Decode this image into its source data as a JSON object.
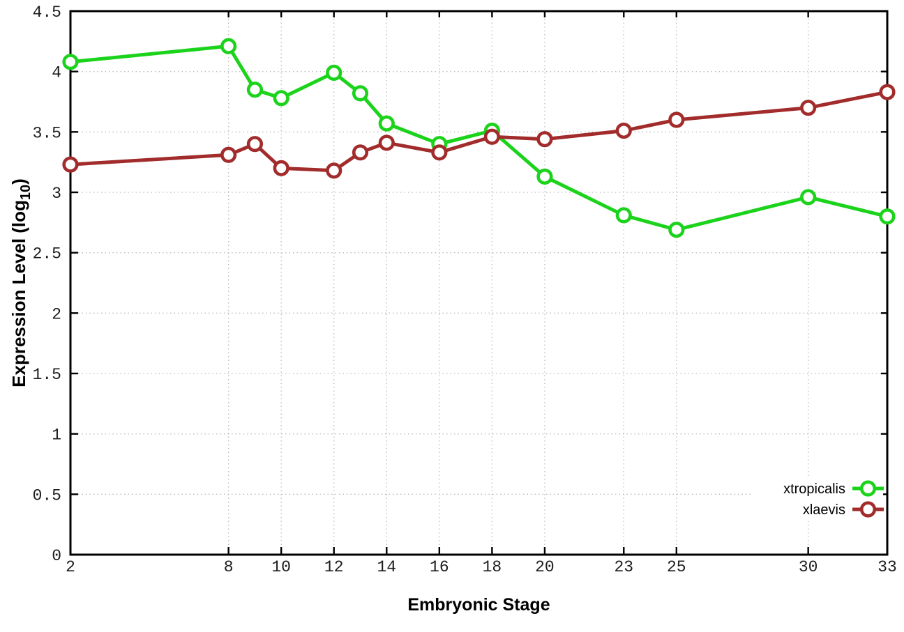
{
  "chart_data": {
    "type": "line",
    "title": "",
    "xlabel": "Embryonic Stage",
    "ylabel": "Expression Level (log10)",
    "ylabel_parts": {
      "pre": "Expression Level (log",
      "sub": "10",
      "post": ")"
    },
    "x": [
      2,
      8,
      9,
      10,
      12,
      13,
      14,
      16,
      18,
      20,
      23,
      25,
      30,
      33
    ],
    "series": [
      {
        "name": "xtropicalis",
        "color": "#1bd31b",
        "marker": "open-circle",
        "values": [
          4.08,
          4.21,
          3.85,
          3.78,
          3.99,
          3.82,
          3.57,
          3.4,
          3.51,
          3.13,
          2.81,
          2.69,
          2.96,
          2.8
        ]
      },
      {
        "name": "xlaevis",
        "color": "#a22c2c",
        "marker": "open-circle",
        "values": [
          3.23,
          3.31,
          3.4,
          3.2,
          3.18,
          3.33,
          3.41,
          3.33,
          3.46,
          3.44,
          3.51,
          3.6,
          3.7,
          3.83
        ]
      }
    ],
    "xlim": [
      2,
      33
    ],
    "ylim": [
      0,
      4.5
    ],
    "xticks": [
      2,
      8,
      10,
      12,
      14,
      16,
      18,
      20,
      23,
      25,
      30,
      33
    ],
    "xtick_labels": [
      "2",
      "8",
      "10",
      "12",
      "14",
      "16",
      "18",
      "20",
      "23",
      "25",
      "30",
      "33"
    ],
    "yticks": [
      0,
      0.5,
      1,
      1.5,
      2,
      2.5,
      3,
      3.5,
      4,
      4.5
    ],
    "ytick_labels": [
      "0",
      "0.5",
      "1",
      "1.5",
      "2",
      "2.5",
      "3",
      "3.5",
      "4",
      "4.5"
    ],
    "grid": true,
    "grid_style": "dotted",
    "legend_position": "bottom-right-inside",
    "frame_color": "#000000",
    "grid_color": "#bbbbbb",
    "background_color": "#ffffff"
  }
}
